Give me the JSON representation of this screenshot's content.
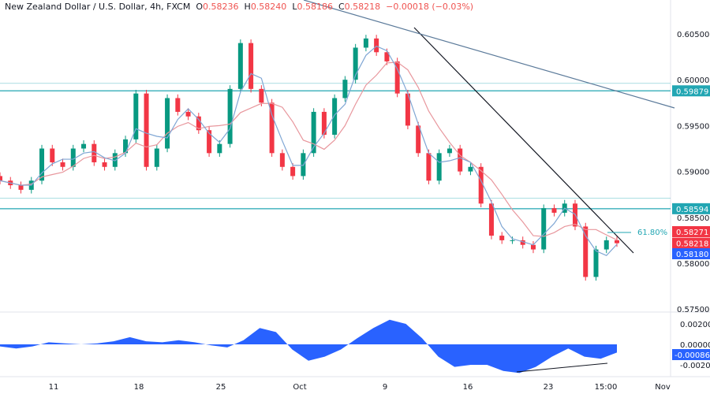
{
  "header": {
    "symbol": "New Zealand Dollar / U.S. Dollar, 4h, FXCM",
    "open_label": "O",
    "open": "0.58236",
    "high_label": "H",
    "high": "0.58240",
    "low_label": "L",
    "low": "0.58186",
    "close_label": "C",
    "close": "0.58218",
    "change": "−0.00018 (−0.03%)"
  },
  "colors": {
    "up": "#089981",
    "down": "#f23645",
    "level": "#22a6b3",
    "trend_black": "#131722",
    "trend_blue": "#5b7a9a",
    "ma_slow": "#e8979d",
    "ma_fast": "#7fa6d4",
    "osc": "#2962ff"
  },
  "price_axis": {
    "ticks": [
      "0.60500",
      "0.60000",
      "0.59500",
      "0.59000",
      "0.58500",
      "0.58000",
      "0.57500"
    ],
    "range": [
      0.575,
      0.605
    ]
  },
  "price_tags": [
    {
      "label": "0.59879",
      "value": 0.59879,
      "color": "#22a6b3"
    },
    {
      "label": "0.58594",
      "value": 0.58594,
      "color": "#22a6b3"
    },
    {
      "label": "0.58271",
      "value": 0.58271,
      "color": "#f23645"
    },
    {
      "label": "0.58218",
      "value": 0.58218,
      "color": "#f23645"
    },
    {
      "label": "0.58180",
      "value": 0.5818,
      "color": "#2962ff"
    }
  ],
  "levels": [
    0.59879,
    0.5996,
    0.58594,
    0.5871
  ],
  "fib_label": "61.80%",
  "osc_axis": {
    "ticks": [
      "0.00200",
      "0.00000",
      "-0.00200"
    ],
    "current": "-0.00086"
  },
  "time_axis": [
    "11",
    "18",
    "25",
    "Oct",
    "9",
    "16",
    "23",
    "15:00",
    "Nov"
  ],
  "chart_data": {
    "type": "candlestick",
    "closes": [
      0.589,
      0.5885,
      0.588,
      0.589,
      0.5925,
      0.591,
      0.5905,
      0.5925,
      0.593,
      0.591,
      0.5905,
      0.592,
      0.5935,
      0.5985,
      0.5905,
      0.5925,
      0.598,
      0.5965,
      0.596,
      0.5945,
      0.592,
      0.593,
      0.599,
      0.604,
      0.599,
      0.5975,
      0.592,
      0.5905,
      0.5895,
      0.592,
      0.5965,
      0.594,
      0.598,
      0.6,
      0.6035,
      0.6045,
      0.603,
      0.602,
      0.5985,
      0.595,
      0.592,
      0.589,
      0.592,
      0.5925,
      0.59,
      0.5905,
      0.5865,
      0.583,
      0.5825,
      0.5825,
      0.582,
      0.5815,
      0.586,
      0.5855,
      0.5865,
      0.584,
      0.5785,
      0.5815,
      0.5825,
      0.58218
    ],
    "oscillator": [
      -0.0002,
      -0.0004,
      -0.0002,
      0.0002,
      0.0001,
      0.0,
      0.0001,
      0.0003,
      0.0007,
      0.0003,
      0.0002,
      0.0004,
      0.0002,
      -0.0001,
      -0.0003,
      0.0004,
      0.0016,
      0.0012,
      -0.0005,
      -0.0016,
      -0.0012,
      -0.0005,
      0.0006,
      0.0016,
      0.0024,
      0.002,
      0.0006,
      -0.0012,
      -0.0022,
      -0.002,
      -0.002,
      -0.0026,
      -0.0028,
      -0.0022,
      -0.0012,
      -0.0004,
      -0.0012,
      -0.0014,
      -0.0008
    ]
  }
}
